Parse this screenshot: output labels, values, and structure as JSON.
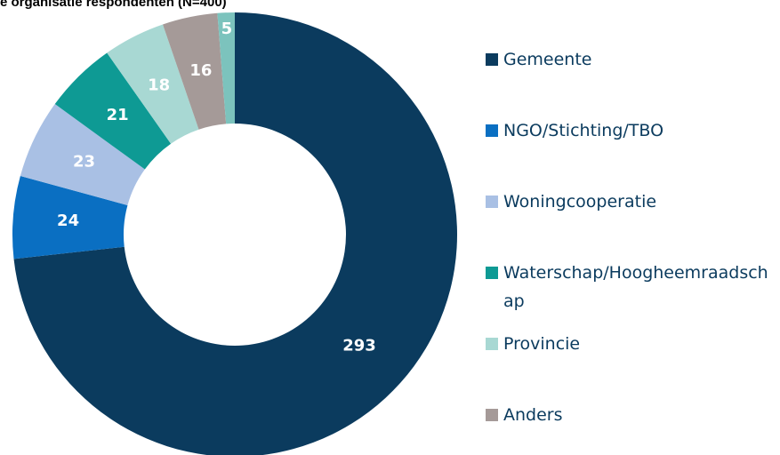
{
  "chart_data": {
    "type": "donut",
    "title": "e organisatie respondenten (N=400)",
    "categories": [
      "Gemeente",
      "NGO/Stichting/TBO",
      "Woningcooperatie",
      "Waterschap/Hoogheemraadschap",
      "Provincie",
      "Anders",
      null
    ],
    "values": [
      293,
      24,
      23,
      21,
      18,
      16,
      5
    ],
    "colors": [
      "#0b3b5e",
      "#0a6fc2",
      "#a9c0e4",
      "#0e9a94",
      "#a8d8d3",
      "#a59a98",
      "#7cc3bd"
    ],
    "legend": "right"
  }
}
